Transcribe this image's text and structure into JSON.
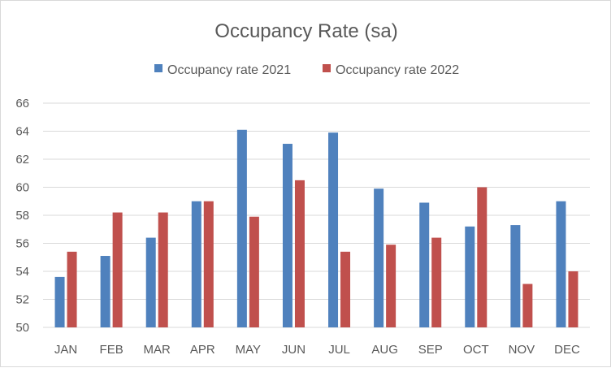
{
  "chart_data": {
    "type": "bar",
    "title": "Occupancy Rate (sa)",
    "xlabel": "",
    "ylabel": "",
    "categories": [
      "JAN",
      "FEB",
      "MAR",
      "APR",
      "MAY",
      "JUN",
      "JUL",
      "AUG",
      "SEP",
      "OCT",
      "NOV",
      "DEC"
    ],
    "series": [
      {
        "name": "Occupancy rate 2021",
        "color": "#4f81bd",
        "values": [
          53.6,
          55.1,
          56.4,
          59.0,
          64.1,
          63.1,
          63.9,
          59.9,
          58.9,
          57.2,
          57.3,
          59.0
        ]
      },
      {
        "name": "Occupancy rate 2022",
        "color": "#c0504d",
        "values": [
          55.4,
          58.2,
          58.2,
          59.0,
          57.9,
          60.5,
          55.4,
          55.9,
          56.4,
          60.0,
          53.1,
          54.0
        ]
      }
    ],
    "ylim": [
      50,
      66
    ],
    "yticks": [
      "50",
      "52",
      "54",
      "56",
      "58",
      "60",
      "62",
      "64",
      "66"
    ],
    "grid": true,
    "legend_position": "top"
  }
}
